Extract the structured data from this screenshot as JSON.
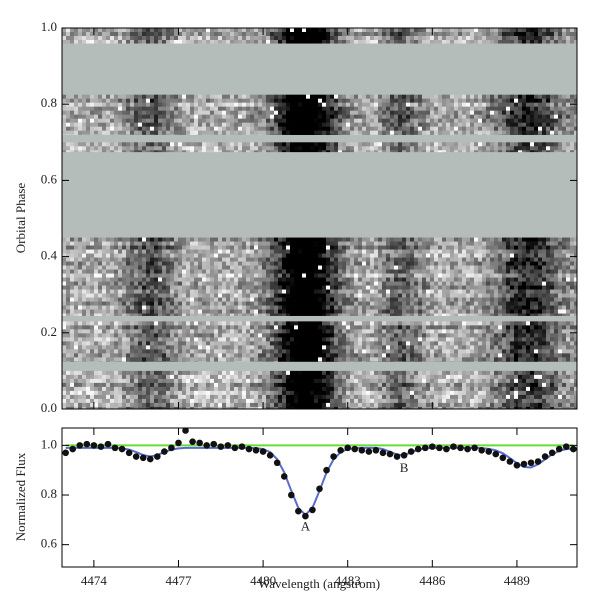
{
  "chart_data": [
    {
      "type": "heatmap",
      "ylabel": "Orbital Phase",
      "xlim": [
        4472.87,
        4491.13
      ],
      "xticks": [
        4474,
        4477,
        4480,
        4483,
        4486,
        4489
      ],
      "ylim": [
        0,
        1
      ],
      "yticks": [
        {
          "value": 0,
          "label": "0.0"
        },
        0.2,
        0.4,
        0.6,
        0.8,
        {
          "value": 1,
          "label": "1.0"
        }
      ],
      "rows": [
        [
          0,
          0.1
        ],
        [
          0.125,
          0.23
        ],
        [
          0.245,
          0.45
        ],
        [
          0.675,
          0.7
        ],
        [
          0.72,
          0.825
        ],
        [
          0.96,
          1.0
        ]
      ],
      "background": "#b5bdbb"
    },
    {
      "type": "spectrum",
      "xlabel": "Wavelength (angstrom)",
      "ylabel": "Normalized Flux",
      "xlim": [
        4472.87,
        4491.13
      ],
      "xticks": [
        4474,
        4477,
        4480,
        4483,
        4486,
        4489
      ],
      "ylim": [
        0.51,
        1.07
      ],
      "yticks": [
        0.6,
        0.8,
        {
          "value": 1,
          "label": "1.0"
        }
      ],
      "x": [
        4473,
        4473.25,
        4473.5,
        4473.75,
        4474,
        4474.25,
        4474.5,
        4474.75,
        4475,
        4475.25,
        4475.5,
        4475.75,
        4476,
        4476.25,
        4476.5,
        4476.75,
        4477,
        4477.25,
        4477.5,
        4477.75,
        4478,
        4478.25,
        4478.5,
        4478.75,
        4479,
        4479.25,
        4479.5,
        4479.75,
        4480,
        4480.25,
        4480.5,
        4480.75,
        4481,
        4481.25,
        4481.5,
        4481.75,
        4482,
        4482.25,
        4482.5,
        4482.75,
        4483,
        4483.25,
        4483.5,
        4483.75,
        4484,
        4484.25,
        4484.5,
        4484.75,
        4485,
        4485.25,
        4485.5,
        4485.75,
        4486,
        4486.25,
        4486.5,
        4486.75,
        4487,
        4487.25,
        4487.5,
        4487.75,
        4488,
        4488.25,
        4488.5,
        4488.75,
        4489,
        4489.25,
        4489.5,
        4489.75,
        4490,
        4490.25,
        4490.5,
        4490.75,
        4491
      ],
      "series": [
        {
          "style": "line",
          "color": "#66dd33",
          "values": [
            1,
            1,
            1,
            1,
            1,
            1,
            1,
            1,
            1,
            1,
            1,
            1,
            1,
            1,
            1,
            1,
            1,
            1,
            1,
            1,
            1,
            1,
            1,
            1,
            1,
            1,
            1,
            1,
            1,
            1,
            1,
            1,
            1,
            1,
            1,
            1,
            1,
            1,
            1,
            1,
            1,
            1,
            1,
            1,
            1,
            1,
            1,
            1,
            1,
            1,
            1,
            1,
            1,
            1,
            1,
            1,
            1,
            1,
            1,
            1,
            1,
            1,
            1,
            1,
            1,
            1,
            1,
            1,
            1,
            1,
            1,
            1,
            1
          ]
        },
        {
          "style": "line",
          "color": "#5a6bd0",
          "values": [
            0.99,
            0.99,
            0.99,
            0.99,
            0.99,
            0.99,
            0.99,
            0.99,
            0.988,
            0.983,
            0.973,
            0.961,
            0.955,
            0.961,
            0.973,
            0.983,
            0.988,
            0.99,
            0.99,
            0.99,
            0.99,
            0.99,
            0.99,
            0.99,
            0.99,
            0.99,
            0.99,
            0.989,
            0.985,
            0.973,
            0.944,
            0.891,
            0.817,
            0.748,
            0.72,
            0.748,
            0.817,
            0.891,
            0.944,
            0.973,
            0.985,
            0.989,
            0.99,
            0.99,
            0.99,
            0.985,
            0.974,
            0.963,
            0.961,
            0.972,
            0.983,
            0.988,
            0.99,
            0.99,
            0.99,
            0.99,
            0.99,
            0.99,
            0.99,
            0.989,
            0.986,
            0.98,
            0.968,
            0.949,
            0.928,
            0.913,
            0.911,
            0.924,
            0.944,
            0.964,
            0.978,
            0.985,
            0.988
          ]
        },
        {
          "style": "points",
          "color": "#111111",
          "values": [
            0.97,
            0.985,
            1.0,
            1.005,
            1.0,
            0.995,
            1.005,
            0.99,
            0.985,
            0.97,
            0.955,
            0.95,
            0.945,
            0.955,
            0.975,
            0.99,
            1.01,
            1.06,
            1.015,
            1.01,
            1.0,
            1.005,
            0.995,
            1.0,
            0.99,
            0.995,
            0.985,
            0.98,
            0.975,
            0.96,
            0.93,
            0.875,
            0.8,
            0.735,
            0.715,
            0.74,
            0.825,
            0.9,
            0.955,
            0.98,
            0.99,
            0.985,
            0.98,
            0.975,
            0.98,
            0.97,
            0.965,
            0.955,
            0.96,
            0.975,
            0.985,
            0.99,
            0.995,
            0.99,
            0.985,
            0.995,
            0.99,
            0.985,
            0.99,
            0.98,
            0.975,
            0.965,
            0.95,
            0.935,
            0.92,
            0.925,
            0.93,
            0.935,
            0.955,
            0.97,
            0.985,
            0.995,
            0.985
          ]
        }
      ],
      "annotations": [
        {
          "text": "A",
          "x": 4481.5,
          "y": 0.67
        },
        {
          "text": "B",
          "x": 4485.0,
          "y": 0.905
        }
      ]
    }
  ]
}
